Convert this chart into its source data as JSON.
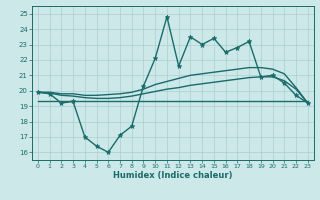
{
  "xlabel": "Humidex (Indice chaleur)",
  "xlim": [
    -0.5,
    23.5
  ],
  "ylim": [
    15.5,
    25.5
  ],
  "yticks": [
    16,
    17,
    18,
    19,
    20,
    21,
    22,
    23,
    24,
    25
  ],
  "xticks": [
    0,
    1,
    2,
    3,
    4,
    5,
    6,
    7,
    8,
    9,
    10,
    11,
    12,
    13,
    14,
    15,
    16,
    17,
    18,
    19,
    20,
    21,
    22,
    23
  ],
  "bg_color": "#cce8e8",
  "grid_color": "#aacfcf",
  "line_color": "#1a6b6b",
  "line_width": 1.0,
  "series_main": {
    "x": [
      0,
      1,
      2,
      3,
      4,
      5,
      6,
      7,
      8,
      9,
      10,
      11,
      12,
      13,
      14,
      15,
      16,
      17,
      18,
      19,
      20,
      21,
      22,
      23
    ],
    "y": [
      19.9,
      19.8,
      19.2,
      19.3,
      17.0,
      16.4,
      16.0,
      17.1,
      17.7,
      20.3,
      22.1,
      24.8,
      21.6,
      23.5,
      23.0,
      23.4,
      22.5,
      22.8,
      23.2,
      20.9,
      21.0,
      20.5,
      19.7,
      19.2
    ]
  },
  "series_flat": {
    "x": [
      0,
      23
    ],
    "y": [
      19.3,
      19.3
    ]
  },
  "series_upper": {
    "x": [
      0,
      1,
      2,
      3,
      4,
      5,
      6,
      7,
      8,
      9,
      10,
      11,
      12,
      13,
      14,
      15,
      16,
      17,
      18,
      19,
      20,
      21,
      22,
      23
    ],
    "y": [
      19.9,
      19.9,
      19.8,
      19.8,
      19.7,
      19.7,
      19.75,
      19.8,
      19.9,
      20.1,
      20.4,
      20.6,
      20.8,
      21.0,
      21.1,
      21.2,
      21.3,
      21.4,
      21.5,
      21.5,
      21.4,
      21.1,
      20.2,
      19.2
    ]
  },
  "series_lower": {
    "x": [
      0,
      1,
      2,
      3,
      4,
      5,
      6,
      7,
      8,
      9,
      10,
      11,
      12,
      13,
      14,
      15,
      16,
      17,
      18,
      19,
      20,
      21,
      22,
      23
    ],
    "y": [
      19.9,
      19.85,
      19.7,
      19.65,
      19.55,
      19.5,
      19.5,
      19.55,
      19.65,
      19.8,
      19.95,
      20.1,
      20.2,
      20.35,
      20.45,
      20.55,
      20.65,
      20.75,
      20.85,
      20.9,
      20.9,
      20.65,
      20.1,
      19.2
    ]
  }
}
